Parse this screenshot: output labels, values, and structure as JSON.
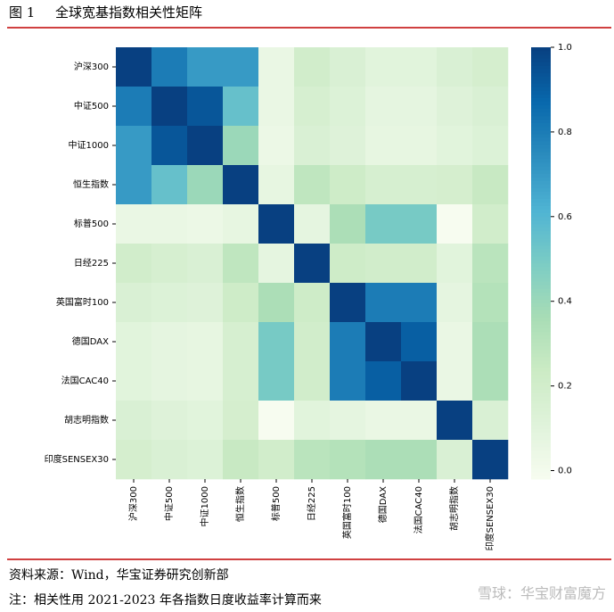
{
  "chart_data": {
    "type": "heatmap",
    "figure_label": "图 1",
    "title": "全球宽基指数相关性矩阵",
    "categories": [
      "沪深300",
      "中证500",
      "中证1000",
      "恒生指数",
      "标普500",
      "日经225",
      "英国富时100",
      "德国DAX",
      "法国CAC40",
      "胡志明指数",
      "印度SENSEX30"
    ],
    "values": [
      [
        1,
        0.8,
        0.7,
        0.7,
        0.05,
        0.2,
        0.15,
        0.1,
        0.1,
        0.15,
        0.18
      ],
      [
        0.8,
        1,
        0.93,
        0.55,
        0.05,
        0.17,
        0.13,
        0.08,
        0.08,
        0.12,
        0.15
      ],
      [
        0.7,
        0.93,
        1,
        0.4,
        0.04,
        0.15,
        0.12,
        0.07,
        0.07,
        0.1,
        0.13
      ],
      [
        0.7,
        0.55,
        0.4,
        1,
        0.07,
        0.28,
        0.22,
        0.17,
        0.17,
        0.18,
        0.25
      ],
      [
        0.05,
        0.05,
        0.04,
        0.07,
        1,
        0.08,
        0.35,
        0.5,
        0.5,
        -0.02,
        0.2
      ],
      [
        0.2,
        0.17,
        0.15,
        0.28,
        0.08,
        1,
        0.22,
        0.2,
        0.2,
        0.1,
        0.3
      ],
      [
        0.15,
        0.13,
        0.12,
        0.22,
        0.35,
        0.22,
        1,
        0.8,
        0.8,
        0.08,
        0.32
      ],
      [
        0.1,
        0.08,
        0.07,
        0.17,
        0.5,
        0.2,
        0.8,
        1,
        0.9,
        0.05,
        0.35
      ],
      [
        0.1,
        0.08,
        0.07,
        0.17,
        0.5,
        0.2,
        0.8,
        0.9,
        1,
        0.05,
        0.35
      ],
      [
        0.15,
        0.12,
        0.1,
        0.18,
        -0.02,
        0.1,
        0.08,
        0.05,
        0.05,
        1,
        0.15
      ],
      [
        0.18,
        0.15,
        0.13,
        0.25,
        0.2,
        0.3,
        0.32,
        0.35,
        0.35,
        0.15,
        1
      ]
    ],
    "colormap": "GnBu",
    "zlim": [
      -0.02,
      1
    ],
    "zticks": [
      {
        "value": 0,
        "label": "0.0"
      },
      0.2,
      0.4,
      0.6,
      0.8,
      {
        "value": 1,
        "label": "1.0"
      }
    ],
    "source": "资料来源：Wind，华宝证券研究创新部",
    "note": "注：相关性用 2021-2023 年各指数日度收益率计算而来",
    "watermark": "雪球：华宝财富魔方"
  }
}
